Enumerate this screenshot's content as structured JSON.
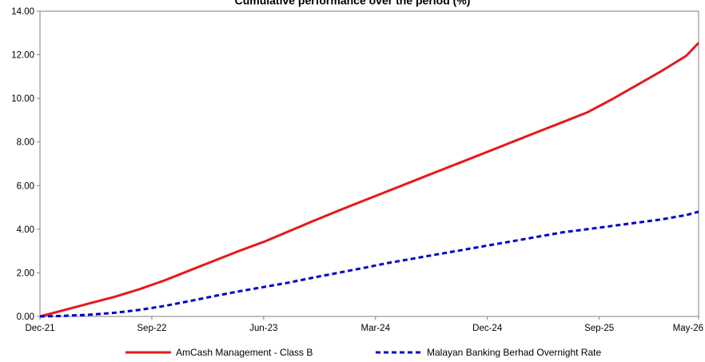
{
  "chart_data": {
    "type": "line",
    "title": "Cumulative performance over the period (%)",
    "xlabel": "",
    "ylabel": "",
    "x_tick_labels": [
      "Dec-21",
      "Sep-22",
      "Jun-23",
      "Mar-24",
      "Dec-24",
      "Sep-25",
      "May-26"
    ],
    "x_tick_months": [
      0,
      9,
      18,
      27,
      36,
      45,
      53
    ],
    "y_tick_labels": [
      "0.00",
      "2.00",
      "4.00",
      "6.00",
      "8.00",
      "10.00",
      "12.00",
      "14.00"
    ],
    "xlim": [
      0,
      53
    ],
    "ylim": [
      0,
      14
    ],
    "grid": false,
    "legend_position": "bottom",
    "series": [
      {
        "name": "AmCash Management - Class B",
        "color": "#e31a1c",
        "dash": "solid",
        "x": [
          0,
          2,
          4,
          6,
          8,
          10,
          12,
          14,
          16,
          18,
          20,
          22,
          24,
          26,
          28,
          30,
          32,
          34,
          36,
          38,
          40,
          42,
          44,
          46,
          48,
          50,
          52,
          53
        ],
        "values": [
          0.0,
          0.3,
          0.6,
          0.9,
          1.25,
          1.65,
          2.1,
          2.55,
          3.0,
          3.42,
          3.9,
          4.38,
          4.85,
          5.3,
          5.75,
          6.2,
          6.65,
          7.1,
          7.55,
          8.0,
          8.45,
          8.9,
          9.35,
          9.95,
          10.6,
          11.25,
          11.95,
          12.55
        ]
      },
      {
        "name": "Malayan Banking Berhad Overnight Rate",
        "color": "#0000cc",
        "dash": "dashed",
        "x": [
          0,
          2,
          4,
          6,
          8,
          10,
          12,
          14,
          16,
          18,
          20,
          22,
          24,
          26,
          28,
          30,
          32,
          34,
          36,
          38,
          40,
          42,
          44,
          46,
          48,
          50,
          52,
          53
        ],
        "values": [
          0.0,
          0.03,
          0.08,
          0.17,
          0.3,
          0.48,
          0.7,
          0.93,
          1.15,
          1.35,
          1.55,
          1.78,
          2.0,
          2.22,
          2.45,
          2.65,
          2.85,
          3.05,
          3.25,
          3.45,
          3.65,
          3.85,
          4.0,
          4.15,
          4.3,
          4.45,
          4.65,
          4.8
        ]
      }
    ]
  }
}
